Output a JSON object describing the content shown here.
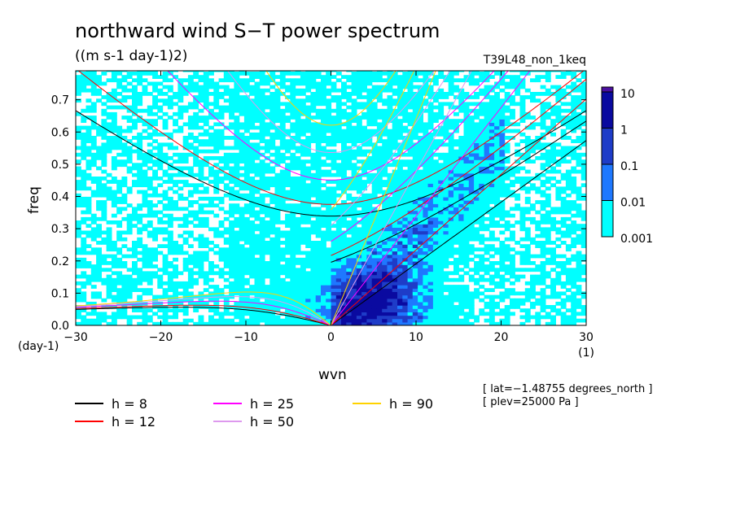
{
  "chart_data": {
    "type": "heatmap",
    "title": "northward wind S−T power spectrum",
    "subtitle": "((m s-1 day-1)2)",
    "experiment": "T39L48_non_1keq",
    "xlabel": "wvn",
    "ylabel": "freq",
    "x_unit": "(1)",
    "y_unit": "(day-1)",
    "xlim": [
      -30,
      30
    ],
    "ylim": [
      0,
      0.79
    ],
    "xticks": [
      -30,
      -20,
      -10,
      0,
      10,
      20,
      30
    ],
    "xtick_labels": [
      "−30",
      "−20",
      "−10",
      "0",
      "10",
      "20",
      "30"
    ],
    "yticks": [
      0,
      0.1,
      0.2,
      0.3,
      0.4,
      0.5,
      0.6,
      0.7
    ],
    "ytick_labels": [
      "0.0",
      "0.1",
      "0.2",
      "0.3",
      "0.4",
      "0.5",
      "0.6",
      "0.7"
    ],
    "colorbar": {
      "levels": [
        "0.001",
        "0.01",
        "0.1",
        "1",
        "10"
      ],
      "colors": [
        "#00ffff",
        "#1e78ff",
        "#1e3cc8",
        "#0a0aa0",
        "#4b0fa0"
      ]
    },
    "dispersion_curves": [
      {
        "label": "h =  8",
        "h": 8,
        "color": "#000000"
      },
      {
        "label": "h = 12",
        "h": 12,
        "color": "#ff0000"
      },
      {
        "label": "h = 25",
        "h": 25,
        "color": "#ff00ff"
      },
      {
        "label": "h = 50",
        "h": 50,
        "color": "#dd99ee"
      },
      {
        "label": "h = 90",
        "h": 90,
        "color": "#ffd200"
      }
    ],
    "annotations": [
      "[ lat=−1.48755 degrees_north ]",
      "[ plev=25000 Pa ]"
    ]
  }
}
